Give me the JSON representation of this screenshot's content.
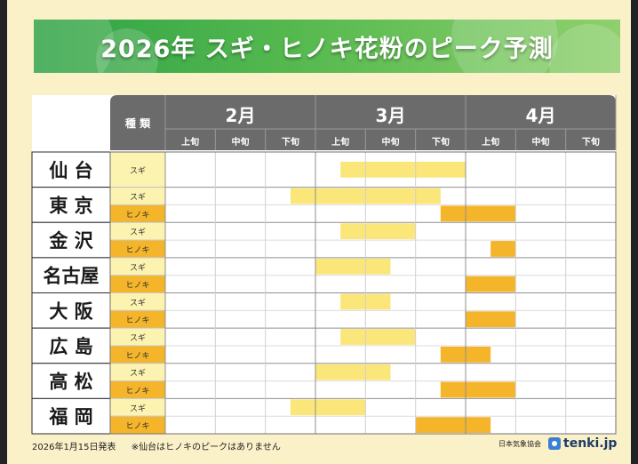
{
  "title": "2026年 スギ・ヒノキ花粉のピーク予測",
  "footer": {
    "date": "2026年1月15日発表",
    "note": "※仙台はヒノキのピークはありません",
    "publisher": "日本気象協会",
    "brand": "tenki.jp"
  },
  "colors": {
    "sugi": "#fbe67a",
    "hinoki": "#f5b52a",
    "header": "#6b6b6b",
    "sugi_label_bg": "#fdf3b0",
    "hinoki_label_bg": "#f5b52a"
  },
  "chart_data": {
    "type": "table",
    "header_kind": "種 類",
    "months": [
      "2月",
      "3月",
      "4月"
    ],
    "periods": [
      "上旬",
      "中旬",
      "下旬",
      "上旬",
      "中旬",
      "下旬",
      "上旬",
      "中旬",
      "下旬"
    ],
    "cities": [
      {
        "name": "仙 台",
        "rows": [
          {
            "type": "スギ",
            "kind": "sugi",
            "start": 3.5,
            "end": 6.0
          }
        ]
      },
      {
        "name": "東 京",
        "rows": [
          {
            "type": "スギ",
            "kind": "sugi",
            "start": 2.5,
            "end": 5.5
          },
          {
            "type": "ヒノキ",
            "kind": "hinoki",
            "start": 5.5,
            "end": 7.0
          }
        ]
      },
      {
        "name": "金 沢",
        "rows": [
          {
            "type": "スギ",
            "kind": "sugi",
            "start": 3.5,
            "end": 5.0
          },
          {
            "type": "ヒノキ",
            "kind": "hinoki",
            "start": 6.5,
            "end": 7.0
          }
        ]
      },
      {
        "name": "名古屋",
        "rows": [
          {
            "type": "スギ",
            "kind": "sugi",
            "start": 3.0,
            "end": 4.5
          },
          {
            "type": "ヒノキ",
            "kind": "hinoki",
            "start": 6.0,
            "end": 7.0
          }
        ]
      },
      {
        "name": "大 阪",
        "rows": [
          {
            "type": "スギ",
            "kind": "sugi",
            "start": 3.5,
            "end": 4.5
          },
          {
            "type": "ヒノキ",
            "kind": "hinoki",
            "start": 6.0,
            "end": 7.0
          }
        ]
      },
      {
        "name": "広 島",
        "rows": [
          {
            "type": "スギ",
            "kind": "sugi",
            "start": 3.5,
            "end": 5.0
          },
          {
            "type": "ヒノキ",
            "kind": "hinoki",
            "start": 5.5,
            "end": 6.5
          }
        ]
      },
      {
        "name": "高 松",
        "rows": [
          {
            "type": "スギ",
            "kind": "sugi",
            "start": 3.0,
            "end": 4.5
          },
          {
            "type": "ヒノキ",
            "kind": "hinoki",
            "start": 5.5,
            "end": 7.0
          }
        ]
      },
      {
        "name": "福 岡",
        "rows": [
          {
            "type": "スギ",
            "kind": "sugi",
            "start": 2.5,
            "end": 4.0
          },
          {
            "type": "ヒノキ",
            "kind": "hinoki",
            "start": 5.0,
            "end": 6.5
          }
        ]
      }
    ]
  }
}
